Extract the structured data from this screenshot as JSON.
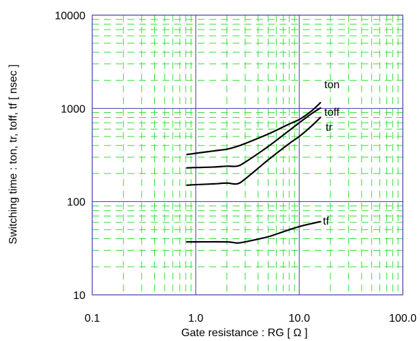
{
  "chart_data": {
    "type": "line",
    "x_scale": "log",
    "y_scale": "log",
    "xlabel": "Gate resistance : RG [ Ω ]",
    "ylabel": "Switching time : ton, tr, toff, tf [ nsec ]",
    "xlim": [
      0.1,
      100
    ],
    "ylim": [
      10,
      10000
    ],
    "x_ticks": [
      "0.1",
      "1.0",
      "10.0",
      "100.0"
    ],
    "y_ticks": [
      "10",
      "100",
      "1000",
      "10000"
    ],
    "grid": true,
    "colors": {
      "major_grid": "#3a3aa8",
      "minor_grid": "#33dd33",
      "series": "#000000"
    },
    "series": [
      {
        "name": "ton",
        "points": [
          [
            0.82,
            320
          ],
          [
            1.0,
            330
          ],
          [
            1.5,
            350
          ],
          [
            2.0,
            365
          ],
          [
            2.5,
            390
          ],
          [
            3.0,
            420
          ],
          [
            5.0,
            530
          ],
          [
            8.0,
            680
          ],
          [
            10.0,
            760
          ],
          [
            13.0,
            930
          ],
          [
            16.0,
            1150
          ]
        ]
      },
      {
        "name": "toff",
        "points": [
          [
            0.82,
            230
          ],
          [
            1.0,
            232
          ],
          [
            1.5,
            235
          ],
          [
            2.0,
            240
          ],
          [
            2.5,
            240
          ],
          [
            3.0,
            265
          ],
          [
            5.0,
            390
          ],
          [
            8.0,
            580
          ],
          [
            10.0,
            700
          ],
          [
            13.0,
            870
          ],
          [
            16.0,
            1010
          ]
        ]
      },
      {
        "name": "tr",
        "points": [
          [
            0.82,
            150
          ],
          [
            1.0,
            152
          ],
          [
            1.5,
            155
          ],
          [
            2.0,
            158
          ],
          [
            2.5,
            155
          ],
          [
            3.0,
            175
          ],
          [
            5.0,
            280
          ],
          [
            8.0,
            420
          ],
          [
            10.0,
            500
          ],
          [
            13.0,
            640
          ],
          [
            16.0,
            800
          ]
        ]
      },
      {
        "name": "tf",
        "points": [
          [
            0.82,
            37
          ],
          [
            1.0,
            37
          ],
          [
            2.0,
            37
          ],
          [
            2.5,
            36
          ],
          [
            3.0,
            37
          ],
          [
            5.0,
            42
          ],
          [
            8.0,
            50
          ],
          [
            10.0,
            54
          ],
          [
            13.0,
            58
          ],
          [
            16.0,
            61
          ]
        ]
      }
    ]
  }
}
